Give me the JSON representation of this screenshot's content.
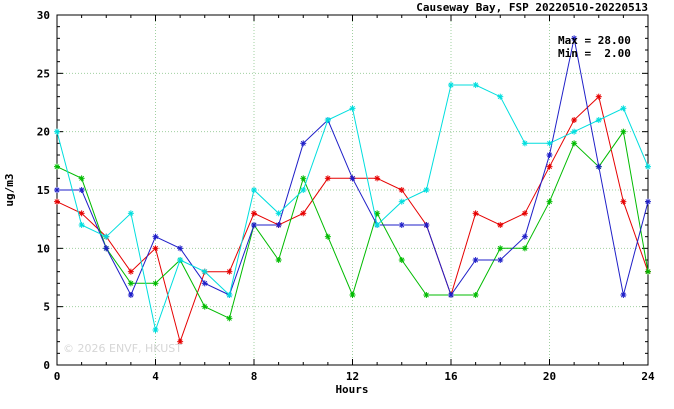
{
  "figure": {
    "watermark": "© 2026 ENVF, HKUST"
  },
  "chart_data": {
    "type": "line",
    "title": "Causeway Bay, FSP 20220510-20220513",
    "xlabel": "Hours",
    "ylabel": "ug/m3",
    "xlim": [
      0,
      24
    ],
    "ylim": [
      0,
      30
    ],
    "x_major_ticks": [
      0,
      4,
      8,
      12,
      16,
      20,
      24
    ],
    "y_major_ticks": [
      0,
      5,
      10,
      15,
      20,
      25,
      30
    ],
    "minor_tick_step_x": 1,
    "minor_tick_step_y": 1,
    "grid": true,
    "legend": "none",
    "marker": "asterisk",
    "annotations": {
      "max": "Max = 28.00",
      "min": "Min =  2.00"
    },
    "stats": {
      "max": 28.0,
      "min": 2.0
    },
    "x": [
      0,
      1,
      2,
      3,
      4,
      5,
      6,
      7,
      8,
      9,
      10,
      11,
      12,
      13,
      14,
      15,
      16,
      17,
      18,
      19,
      20,
      21,
      22,
      23,
      24
    ],
    "series": [
      {
        "name": "series-red",
        "color": "#e60000",
        "values": [
          14,
          13,
          11,
          8,
          10,
          2,
          8,
          8,
          13,
          12,
          13,
          16,
          16,
          16,
          15,
          12,
          6,
          13,
          12,
          13,
          17,
          21,
          23,
          14,
          8
        ]
      },
      {
        "name": "series-green",
        "color": "#00bb00",
        "values": [
          17,
          16,
          10,
          7,
          7,
          9,
          5,
          4,
          12,
          9,
          16,
          11,
          6,
          13,
          9,
          6,
          6,
          6,
          10,
          10,
          14,
          19,
          17,
          20,
          8
        ]
      },
      {
        "name": "series-blue",
        "color": "#1f1fc8",
        "values": [
          15,
          15,
          10,
          6,
          11,
          10,
          7,
          6,
          12,
          12,
          19,
          21,
          16,
          12,
          12,
          12,
          6,
          9,
          9,
          11,
          18,
          28,
          17,
          6,
          14
        ]
      },
      {
        "name": "series-cyan",
        "color": "#00dede",
        "values": [
          20,
          12,
          11,
          13,
          3,
          9,
          8,
          6,
          15,
          13,
          15,
          21,
          22,
          12,
          14,
          15,
          24,
          24,
          23,
          19,
          19,
          20,
          21,
          22,
          17
        ]
      }
    ]
  },
  "colors": {
    "grid": "#a0d0a0",
    "axis": "#000000",
    "watermark": "#d6d6d6"
  }
}
